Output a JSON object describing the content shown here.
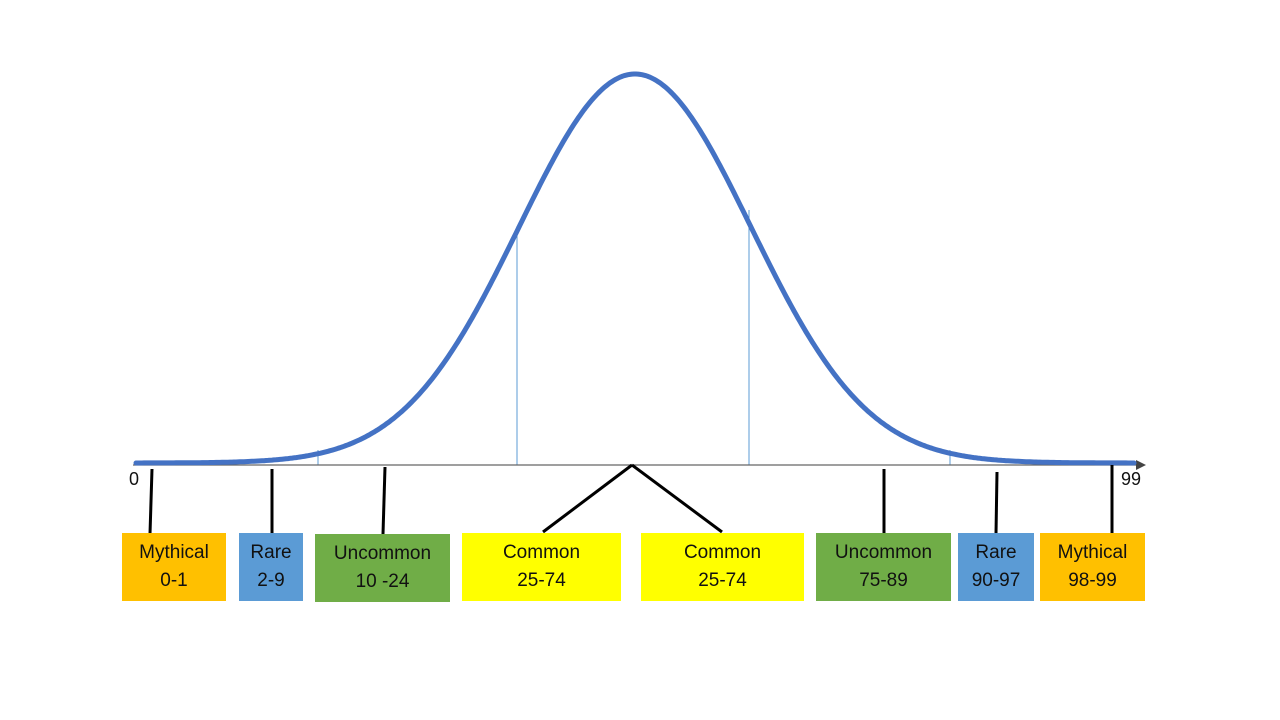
{
  "axis": {
    "min_label": "0",
    "max_label": "99"
  },
  "colors": {
    "curve": "#4472C4",
    "mythical": "#FFC000",
    "rare": "#5B9BD5",
    "uncommon": "#70AD47",
    "common": "#FFFF00"
  },
  "labels": [
    {
      "name": "Mythical",
      "range": "0-1"
    },
    {
      "name": "Rare",
      "range": "2-9"
    },
    {
      "name": "Uncommon",
      "range": "10 -24"
    },
    {
      "name": "Common",
      "range": "25-74"
    },
    {
      "name": "Common",
      "range": "25-74"
    },
    {
      "name": "Uncommon",
      "range": "75-89"
    },
    {
      "name": "Rare",
      "range": "90-97"
    },
    {
      "name": "Mythical",
      "range": "98-99"
    }
  ]
}
